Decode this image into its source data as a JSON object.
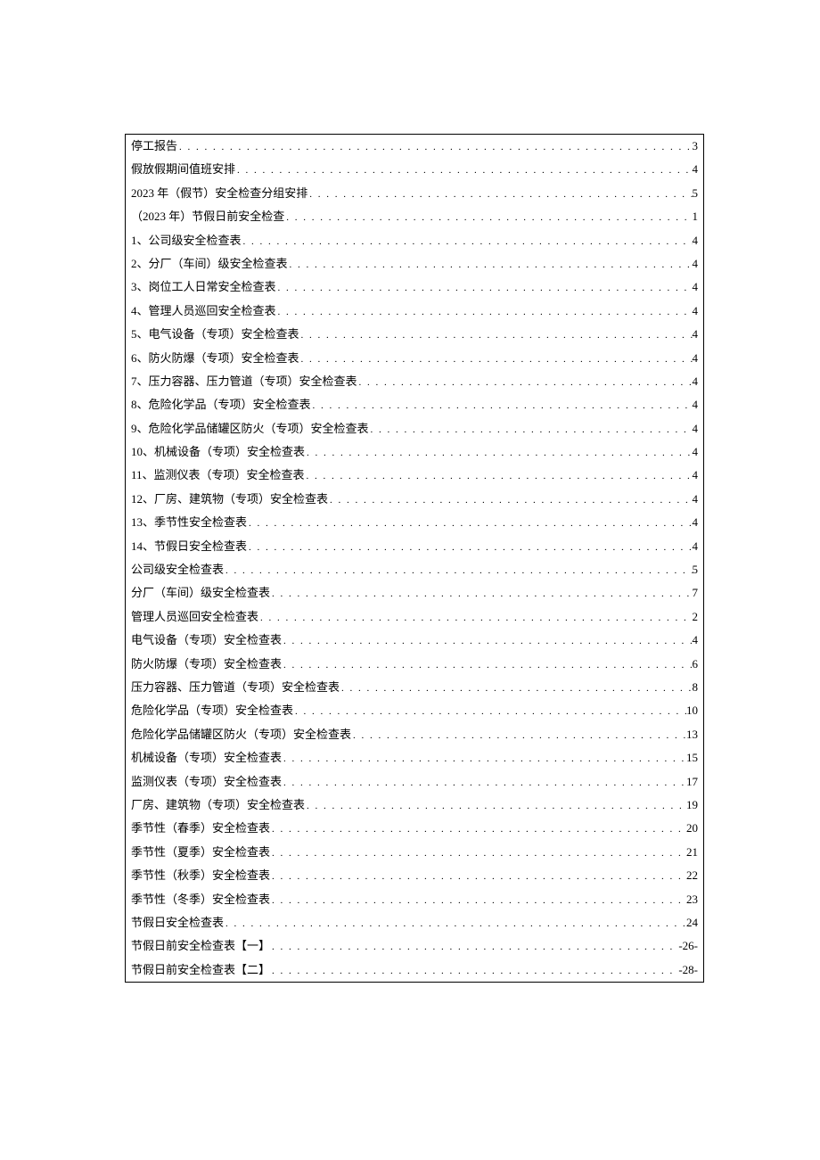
{
  "toc": {
    "font_size": 13,
    "text_color": "#000000",
    "border_color": "#000000",
    "background_color": "#ffffff",
    "entries": [
      {
        "title": "停工报告",
        "page": "3"
      },
      {
        "title": "假放假期间值班安排",
        "page": "4"
      },
      {
        "title": "2023 年（假节）安全检查分组安排",
        "page": "5"
      },
      {
        "title": "（2023 年）节假日前安全检查",
        "page": "1"
      },
      {
        "title": "1、公司级安全检查表",
        "page": "4"
      },
      {
        "title": "2、分厂（车间）级安全检查表",
        "page": "4"
      },
      {
        "title": "3、岗位工人日常安全检查表",
        "page": "4"
      },
      {
        "title": "4、管理人员巡回安全检查表",
        "page": "4"
      },
      {
        "title": "5、电气设备（专项）安全检查表",
        "page": "4"
      },
      {
        "title": "6、防火防爆（专项）安全检查表",
        "page": "4"
      },
      {
        "title": "7、压力容器、压力管道（专项）安全检查表",
        "page": "4"
      },
      {
        "title": "8、危险化学品（专项）安全检查表",
        "page": "4"
      },
      {
        "title": "9、危险化学品储罐区防火（专项）安全检查表",
        "page": "4"
      },
      {
        "title": "10、机械设备（专项）安全检查表",
        "page": "4"
      },
      {
        "title": "11、监测仪表（专项）安全检查表",
        "page": "4"
      },
      {
        "title": "12、厂房、建筑物（专项）安全检查表",
        "page": "4"
      },
      {
        "title": "13、季节性安全检查表",
        "page": "4"
      },
      {
        "title": "14、节假日安全检查表",
        "page": "4"
      },
      {
        "title": "公司级安全检查表",
        "page": "5"
      },
      {
        "title": "分厂（车间）级安全检查表",
        "page": "7"
      },
      {
        "title": "管理人员巡回安全检查表",
        "page": "2"
      },
      {
        "title": "电气设备（专项）安全检查表",
        "page": "4"
      },
      {
        "title": "防火防爆（专项）安全检查表",
        "page": "6"
      },
      {
        "title": "压力容器、压力管道（专项）安全检查表",
        "page": "8"
      },
      {
        "title": "危险化学品（专项）安全检查表",
        "page": "10"
      },
      {
        "title": "危险化学品储罐区防火（专项）安全检查表",
        "page": "13"
      },
      {
        "title": "机械设备（专项）安全检查表",
        "page": "15"
      },
      {
        "title": "监测仪表（专项）安全检查表",
        "page": "17"
      },
      {
        "title": "厂房、建筑物（专项）安全检查表",
        "page": "19"
      },
      {
        "title": "季节性（春季）安全检查表",
        "page": "20"
      },
      {
        "title": "季节性（夏季）安全检查表",
        "page": "21"
      },
      {
        "title": "季节性（秋季）安全检查表",
        "page": "22"
      },
      {
        "title": "季节性（冬季）安全检查表",
        "page": "23"
      },
      {
        "title": "节假日安全检查表",
        "page": "24"
      },
      {
        "title": "节假日前安全检查表【一】",
        "page": "-26-"
      },
      {
        "title": "节假日前安全检查表【二】",
        "page": "-28-"
      }
    ]
  }
}
